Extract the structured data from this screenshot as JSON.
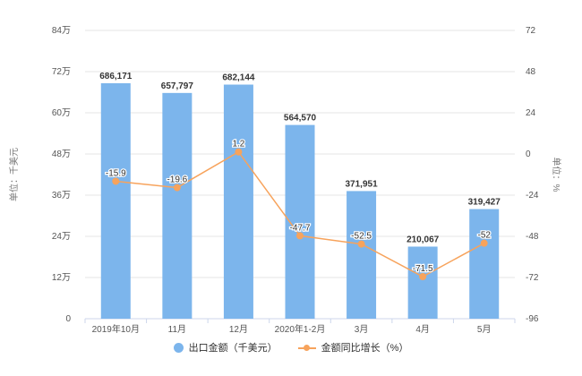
{
  "chart_data": {
    "type": "bar+line",
    "title": "",
    "categories": [
      "2019年10月",
      "11月",
      "12月",
      "2020年1-2月",
      "3月",
      "4月",
      "5月"
    ],
    "series": [
      {
        "name": "出口金额（千美元）",
        "type": "bar",
        "axis": "left",
        "color": "#7cb5ec",
        "values": [
          686171,
          657797,
          682144,
          564570,
          371951,
          210067,
          319427
        ],
        "labels": [
          "686,171",
          "657,797",
          "682,144",
          "564,570",
          "371,951",
          "210,067",
          "319,427"
        ]
      },
      {
        "name": "金额同比增长（%）",
        "type": "line",
        "axis": "right",
        "color": "#f7a35c",
        "values": [
          -15.9,
          -19.6,
          1.2,
          -47.7,
          -52.5,
          -71.5,
          -52
        ],
        "labels": [
          "-15.9",
          "-19.6",
          "1.2",
          "-47.7",
          "-52.5",
          "-71.5",
          "-52"
        ]
      }
    ],
    "left_axis": {
      "label": "单位：千美元",
      "ylim": [
        0,
        840000
      ],
      "ticks": [
        0,
        120000,
        240000,
        360000,
        480000,
        600000,
        720000,
        840000
      ],
      "tick_labels": [
        "0",
        "12万",
        "24万",
        "36万",
        "48万",
        "60万",
        "72万",
        "84万"
      ]
    },
    "right_axis": {
      "label": "单位：%",
      "ylim": [
        -96,
        72
      ],
      "ticks": [
        -96,
        -72,
        -48,
        -24,
        0,
        24,
        48,
        72
      ],
      "tick_labels": [
        "-96",
        "-72",
        "-48",
        "-24",
        "0",
        "24",
        "48",
        "72"
      ]
    },
    "grid": true,
    "legend_position": "bottom"
  },
  "legend": {
    "bar_label": "出口金额（千美元）",
    "line_label": "金额同比增长（%）"
  },
  "colors": {
    "bar": "#7cb5ec",
    "line": "#f7a35c",
    "grid": "#e6e6e6"
  }
}
